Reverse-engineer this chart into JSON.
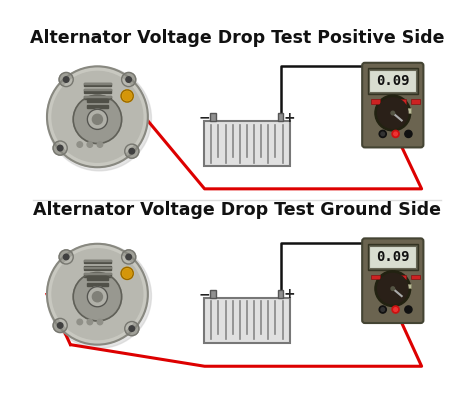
{
  "title1": "Alternator Voltage Drop Test Positive Side",
  "title2": "Alternator Voltage Drop Test Ground Side",
  "title_fontsize": 12.5,
  "title_fontweight": "bold",
  "bg_color": "#ffffff",
  "display_value": "0.09",
  "meter_body_color": "#6b6450",
  "meter_display_bg": "#c8d8c0",
  "meter_display_border": "#555555",
  "meter_knob_color": "#2a2018",
  "wire_red": "#dd0000",
  "wire_black": "#111111",
  "alt_body_light": "#c8c8c0",
  "alt_body_mid": "#a0a098",
  "alt_body_dark": "#787870",
  "battery_body": "#e0e0e0",
  "battery_border": "#777777",
  "stud_color": "#d4960a"
}
